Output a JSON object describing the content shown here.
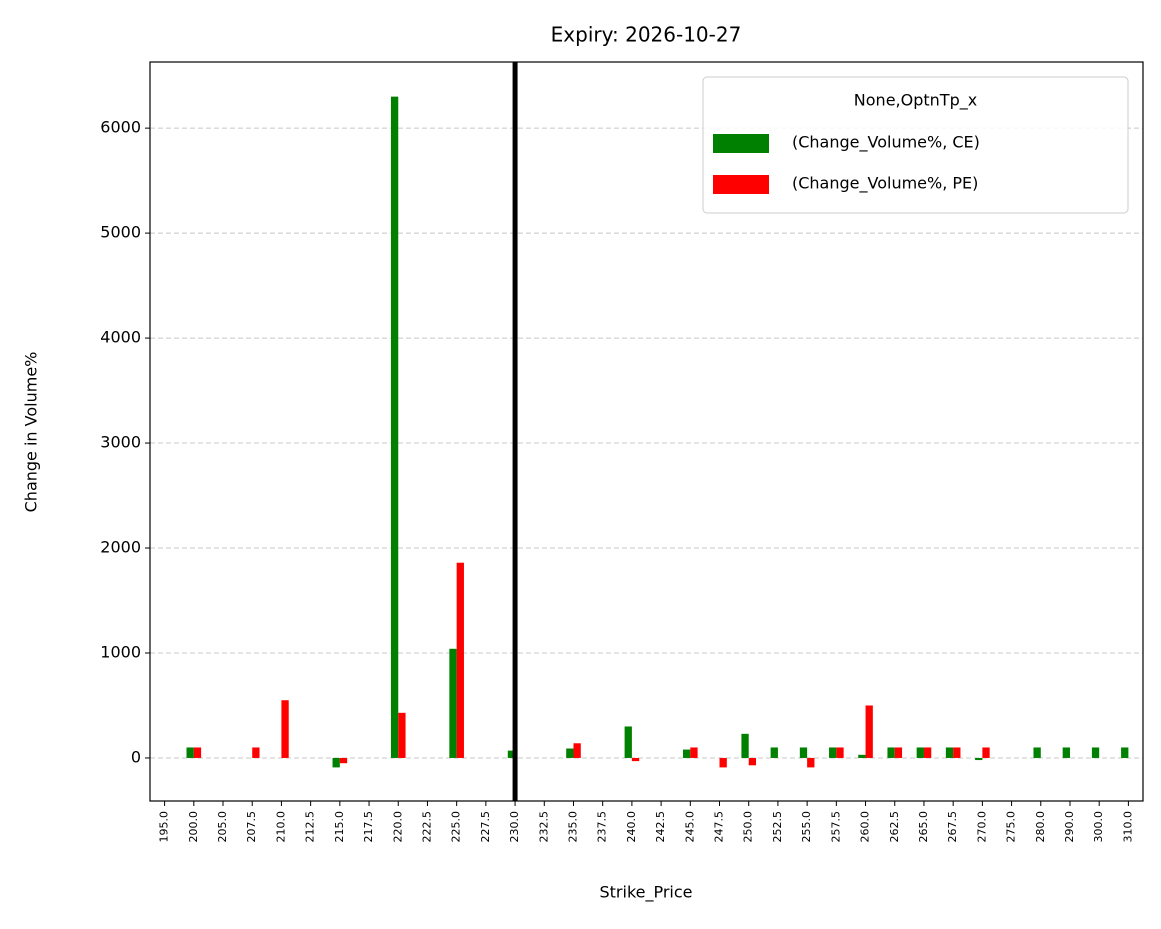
{
  "chart_data": {
    "type": "bar",
    "title": "Expiry: 2026-10-27",
    "x_label": "Strike_Price",
    "y_label": "Change in Volume%",
    "legend_title": "None,OptnTp_x",
    "legend_position": "upper right",
    "categories": [
      "195.0",
      "200.0",
      "205.0",
      "207.5",
      "210.0",
      "212.5",
      "215.0",
      "217.5",
      "220.0",
      "222.5",
      "225.0",
      "227.5",
      "230.0",
      "232.5",
      "235.0",
      "237.5",
      "240.0",
      "242.5",
      "245.0",
      "247.5",
      "250.0",
      "252.5",
      "255.0",
      "257.5",
      "260.0",
      "262.5",
      "265.0",
      "267.5",
      "270.0",
      "275.0",
      "280.0",
      "290.0",
      "300.0",
      "310.0"
    ],
    "series": [
      {
        "name": "(Change_Volume%, CE)",
        "color": "#008000",
        "values": [
          null,
          100,
          null,
          0,
          null,
          null,
          -90,
          null,
          6300,
          null,
          1040,
          null,
          70,
          null,
          90,
          null,
          300,
          null,
          80,
          0,
          230,
          100,
          100,
          100,
          30,
          100,
          100,
          100,
          -20,
          null,
          100,
          100,
          100,
          100
        ]
      },
      {
        "name": "(Change_Volume%, PE)",
        "color": "#ff0000",
        "values": [
          null,
          100,
          null,
          100,
          550,
          null,
          -50,
          null,
          430,
          null,
          1860,
          null,
          null,
          null,
          140,
          null,
          -30,
          null,
          100,
          -90,
          -70,
          null,
          -90,
          100,
          500,
          100,
          100,
          100,
          100,
          null,
          null,
          null,
          null,
          null
        ]
      }
    ],
    "vline": "230.0",
    "ylim": [
      -410,
      6630
    ],
    "yticks": [
      0,
      1000,
      2000,
      3000,
      4000,
      5000,
      6000
    ],
    "grid": true
  }
}
